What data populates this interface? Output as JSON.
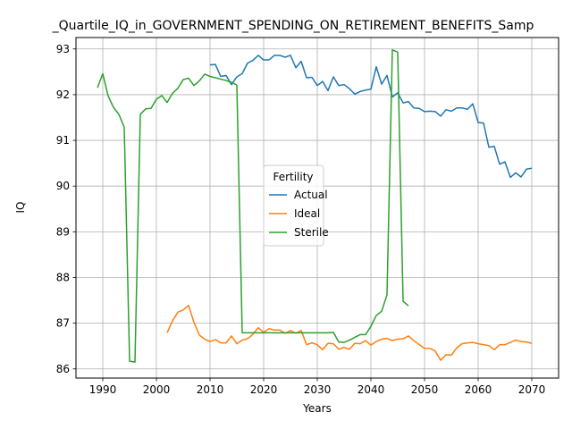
{
  "chart_data": {
    "type": "line",
    "title": "_Quartile_IQ_in_GOVERNMENT_SPENDING_ON_RETIREMENT_BENEFITS_Samp",
    "xlabel": "Years",
    "ylabel": "IQ",
    "xlim": [
      1985,
      2075
    ],
    "ylim": [
      85.8,
      93.25
    ],
    "xticks": [
      1990,
      2000,
      2010,
      2020,
      2030,
      2040,
      2050,
      2060,
      2070
    ],
    "yticks": [
      86,
      87,
      88,
      89,
      90,
      91,
      92,
      93
    ],
    "grid": true,
    "legend": {
      "title": "Fertility",
      "placement": "center-right"
    },
    "series": [
      {
        "name": "Actual",
        "color": "#1f77b4",
        "x": [
          2010,
          2011,
          2012,
          2013,
          2014,
          2015,
          2016,
          2017,
          2018,
          2019,
          2020,
          2021,
          2022,
          2023,
          2024,
          2025,
          2026,
          2027,
          2028,
          2029,
          2030,
          2031,
          2032,
          2033,
          2034,
          2035,
          2036,
          2037,
          2038,
          2039,
          2040,
          2041,
          2042,
          2043,
          2044,
          2045,
          2046,
          2047,
          2048,
          2049,
          2050,
          2051,
          2052,
          2053,
          2054,
          2055,
          2056,
          2057,
          2058,
          2059,
          2060,
          2061,
          2062,
          2063,
          2064,
          2065,
          2066,
          2067,
          2068,
          2069,
          2070
        ],
        "y": [
          92.65,
          92.66,
          92.4,
          92.42,
          92.22,
          92.39,
          92.46,
          92.69,
          92.75,
          92.86,
          92.76,
          92.76,
          92.86,
          92.86,
          92.82,
          92.86,
          92.59,
          92.73,
          92.37,
          92.38,
          92.2,
          92.29,
          92.09,
          92.39,
          92.2,
          92.22,
          92.13,
          92.01,
          92.07,
          92.1,
          92.12,
          92.61,
          92.23,
          92.42,
          91.95,
          92.04,
          91.82,
          91.85,
          91.71,
          91.7,
          91.63,
          91.64,
          91.63,
          91.53,
          91.67,
          91.64,
          91.71,
          91.71,
          91.68,
          91.8,
          91.39,
          91.38,
          90.85,
          90.87,
          90.48,
          90.53,
          90.19,
          90.29,
          90.2,
          90.37,
          90.39
        ]
      },
      {
        "name": "Ideal",
        "color": "#ff7f0e",
        "x": [
          2002,
          2003,
          2004,
          2005,
          2006,
          2007,
          2008,
          2009,
          2010,
          2011,
          2012,
          2013,
          2014,
          2015,
          2016,
          2017,
          2018,
          2019,
          2020,
          2021,
          2022,
          2023,
          2024,
          2025,
          2026,
          2027,
          2028,
          2029,
          2030,
          2031,
          2032,
          2033,
          2034,
          2035,
          2036,
          2037,
          2038,
          2039,
          2040,
          2041,
          2042,
          2043,
          2044,
          2045,
          2046,
          2047,
          2048,
          2049,
          2050,
          2051,
          2052,
          2053,
          2054,
          2055,
          2056,
          2057,
          2058,
          2059,
          2060,
          2061,
          2062,
          2063,
          2064,
          2065,
          2066,
          2067,
          2068,
          2069,
          2070
        ],
        "y": [
          86.79,
          87.05,
          87.24,
          87.29,
          87.39,
          87.02,
          86.74,
          86.65,
          86.6,
          86.64,
          86.57,
          86.57,
          86.72,
          86.55,
          86.63,
          86.66,
          86.76,
          86.9,
          86.8,
          86.88,
          86.85,
          86.85,
          86.78,
          86.84,
          86.78,
          86.84,
          86.53,
          86.57,
          86.53,
          86.42,
          86.56,
          86.55,
          86.43,
          86.47,
          86.43,
          86.56,
          86.55,
          86.62,
          86.52,
          86.6,
          86.65,
          86.67,
          86.62,
          86.65,
          86.66,
          86.72,
          86.62,
          86.53,
          86.45,
          86.45,
          86.39,
          86.19,
          86.31,
          86.3,
          86.46,
          86.55,
          86.57,
          86.58,
          86.55,
          86.53,
          86.51,
          86.42,
          86.53,
          86.53,
          86.58,
          86.63,
          86.6,
          86.59,
          86.56
        ]
      },
      {
        "name": "Sterile",
        "color": "#2ca02c",
        "x": [
          1989,
          1990,
          1991,
          1992,
          1993,
          1994,
          1995,
          1996,
          1997,
          1998,
          1999,
          2000,
          2001,
          2002,
          2003,
          2004,
          2005,
          2006,
          2007,
          2008,
          2009,
          2010,
          2011,
          2012,
          2013,
          2014,
          2015,
          2016,
          2017,
          2018,
          2019,
          2020,
          2021,
          2022,
          2023,
          2024,
          2025,
          2026,
          2027,
          2028,
          2029,
          2030,
          2031,
          2032,
          2033,
          2034,
          2035,
          2036,
          2037,
          2038,
          2039,
          2040,
          2041,
          2042,
          2043,
          2044,
          2045,
          2046,
          2047
        ],
        "y": [
          92.15,
          92.46,
          91.97,
          91.72,
          91.57,
          91.29,
          86.17,
          86.15,
          91.57,
          91.69,
          91.7,
          91.9,
          91.98,
          91.83,
          92.03,
          92.14,
          92.33,
          92.36,
          92.2,
          92.3,
          92.45,
          92.4,
          92.37,
          92.34,
          92.31,
          92.27,
          92.21,
          86.79,
          86.79,
          86.79,
          86.79,
          86.79,
          86.79,
          86.79,
          86.79,
          86.79,
          86.79,
          86.79,
          86.79,
          86.79,
          86.79,
          86.79,
          86.79,
          86.79,
          86.8,
          86.59,
          86.58,
          86.63,
          86.69,
          86.75,
          86.75,
          86.93,
          87.17,
          87.26,
          87.62,
          92.98,
          92.93,
          87.48,
          87.38
        ]
      }
    ]
  }
}
